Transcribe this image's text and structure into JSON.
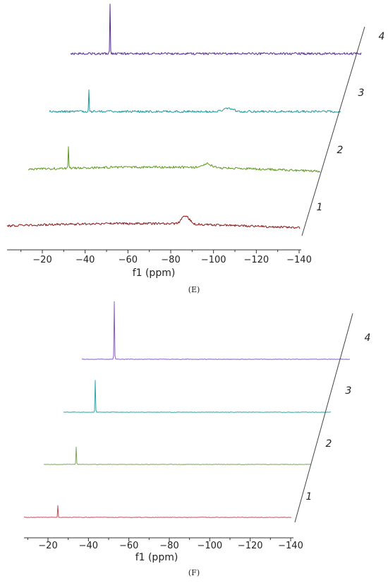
{
  "chart_data": [
    {
      "type": "line",
      "panel_label": "(E)",
      "xlabel": "f1 (ppm)",
      "x_ticks": [
        -20,
        -40,
        -60,
        -80,
        -100,
        -120,
        -140
      ],
      "tick_labels": [
        "−20",
        "−40",
        "−60",
        "−80",
        "−100",
        "−120",
        "−140"
      ],
      "xlim": [
        0,
        -146
      ],
      "depth_labels": [
        "1",
        "2",
        "3",
        "4"
      ],
      "series": [
        {
          "label": "1",
          "color": "#8b1a1a",
          "peak_ppm": -90,
          "peak_type": "broad",
          "peak_height": 0.18,
          "noise": "high",
          "baseline": "wavy"
        },
        {
          "label": "2",
          "color": "#5e9a1e",
          "peak_ppm": -30,
          "peak_type": "sharp",
          "peak_height": 0.45,
          "broad_ppm": -100,
          "noise": "high",
          "baseline": "wavy"
        },
        {
          "label": "3",
          "color": "#1f9a9a",
          "peak_ppm": -30,
          "peak_type": "sharp",
          "peak_height": 0.45,
          "broad_ppm": -110,
          "noise": "high",
          "baseline": "flat"
        },
        {
          "label": "4",
          "color": "#5b2a96",
          "peak_ppm": -30,
          "peak_type": "sharp",
          "peak_height": 1.0,
          "noise": "high",
          "baseline": "flat"
        }
      ]
    },
    {
      "type": "line",
      "panel_label": "(F)",
      "xlabel": "f1 (ppm)",
      "x_ticks": [
        -20,
        -40,
        -60,
        -80,
        -100,
        -120,
        -140
      ],
      "tick_labels": [
        "−20",
        "−40",
        "−60",
        "−80",
        "−100",
        "−120",
        "−140"
      ],
      "xlim": [
        -7,
        -148
      ],
      "depth_labels": [
        "1",
        "2",
        "3",
        "4"
      ],
      "series": [
        {
          "label": "1",
          "color": "#c0505a",
          "peak_ppm": -25,
          "peak_type": "sharp",
          "peak_height": 0.2,
          "noise": "low",
          "baseline": "flat"
        },
        {
          "label": "2",
          "color": "#7aa65a",
          "peak_ppm": -25,
          "peak_type": "sharp",
          "peak_height": 0.3,
          "noise": "low",
          "baseline": "flat"
        },
        {
          "label": "3",
          "color": "#2aa8a8",
          "peak_ppm": -25,
          "peak_type": "sharp",
          "peak_height": 0.55,
          "noise": "low",
          "baseline": "flat"
        },
        {
          "label": "4",
          "color": "#8a5cc0",
          "peak_ppm": -25,
          "peak_type": "sharp",
          "peak_height": 1.0,
          "noise": "low",
          "baseline": "flat"
        }
      ]
    }
  ]
}
